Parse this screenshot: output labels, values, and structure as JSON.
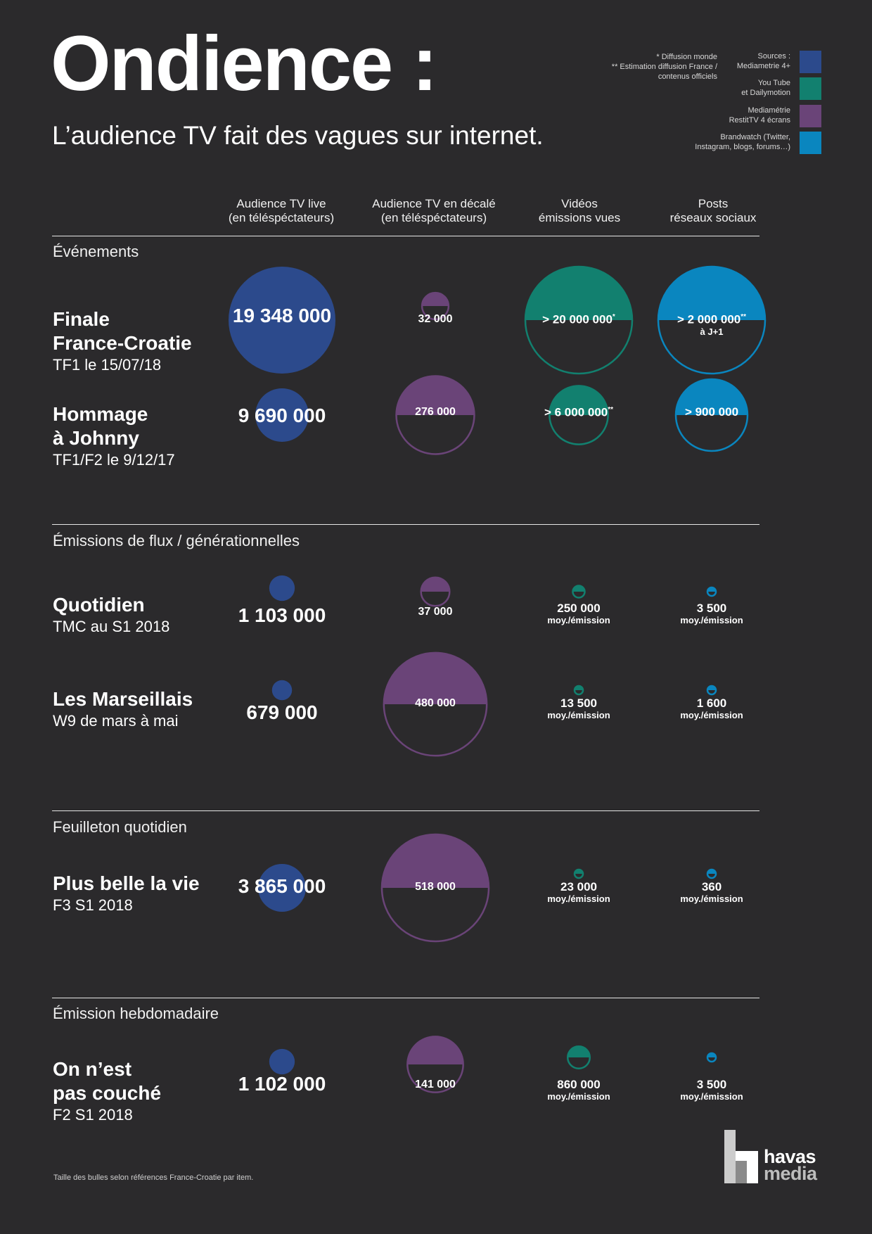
{
  "header": {
    "title": "Ondience :",
    "subtitle": "L’audience TV fait des vagues sur internet.",
    "notes": "* Diffusion monde\n** Estimation diffusion France /\ncontenus officiels"
  },
  "legend": [
    {
      "label": "Sources :\nMediametrie 4+",
      "color": "#2c4a8c"
    },
    {
      "label": "You Tube\net Dailymotion",
      "color": "#12806f"
    },
    {
      "label": "Mediamétrie\nRestitTV 4 écrans",
      "color": "#6a4478"
    },
    {
      "label": "Brandwatch (Twitter,\nInstagram, blogs, forums…)",
      "color": "#0a86bf"
    }
  ],
  "columns": [
    "Audience TV live\n(en téléspéctateurs)",
    "Audience TV en décalé\n(en téléspéctateurs)",
    "Vidéos\némissions vues",
    "Posts\nréseaux sociaux"
  ],
  "sections": [
    "Événements",
    "Émissions de flux / générationnelles",
    "Feuilleton quotidien",
    "Émission hebdomadaire"
  ],
  "rows": [
    {
      "name": "Finale\nFrance-Croatie",
      "sub": "TF1 le 15/07/18",
      "values": [
        {
          "text": "19 348 000",
          "sup": "",
          "small": ""
        },
        {
          "text": "32 000",
          "sup": "",
          "small": ""
        },
        {
          "text": "> 20 000 000",
          "sup": "*",
          "small": ""
        },
        {
          "text": "> 2 000 000",
          "sup": "**",
          "small": "à J+1"
        }
      ]
    },
    {
      "name": "Hommage\nà Johnny",
      "sub": "TF1/F2 le 9/12/17",
      "values": [
        {
          "text": "9 690 000",
          "sup": "",
          "small": ""
        },
        {
          "text": "276 000",
          "sup": "",
          "small": ""
        },
        {
          "text": "> 6 000 000",
          "sup": "**",
          "small": ""
        },
        {
          "text": "> 900 000",
          "sup": "",
          "small": ""
        }
      ]
    },
    {
      "name": "Quotidien",
      "sub": "TMC au S1 2018",
      "values": [
        {
          "text": "1 103 000",
          "sup": "",
          "small": ""
        },
        {
          "text": "37 000",
          "sup": "",
          "small": ""
        },
        {
          "text": "250 000",
          "sup": "",
          "small": "moy./émission"
        },
        {
          "text": "3 500",
          "sup": "",
          "small": "moy./émission"
        }
      ]
    },
    {
      "name": "Les Marseillais",
      "sub": "W9 de mars à mai",
      "values": [
        {
          "text": "679 000",
          "sup": "",
          "small": ""
        },
        {
          "text": "480 000",
          "sup": "",
          "small": ""
        },
        {
          "text": "13 500",
          "sup": "",
          "small": "moy./émission"
        },
        {
          "text": "1 600",
          "sup": "",
          "small": "moy./émission"
        }
      ]
    },
    {
      "name": "Plus belle la vie",
      "sub": "F3 S1 2018",
      "values": [
        {
          "text": "3 865 000",
          "sup": "",
          "small": ""
        },
        {
          "text": "518 000",
          "sup": "",
          "small": ""
        },
        {
          "text": "23 000",
          "sup": "",
          "small": "moy./émission"
        },
        {
          "text": "360",
          "sup": "",
          "small": "moy./émission"
        }
      ]
    },
    {
      "name": "On n’est\npas couché",
      "sub": "F2 S1 2018",
      "values": [
        {
          "text": "1 102 000",
          "sup": "",
          "small": ""
        },
        {
          "text": "141 000",
          "sup": "",
          "small": ""
        },
        {
          "text": "860 000",
          "sup": "",
          "small": "moy./émission"
        },
        {
          "text": "3 500",
          "sup": "",
          "small": "moy./émission"
        }
      ]
    }
  ],
  "footnote": "Taille des bulles selon références France-Croatie par item.",
  "logo": {
    "line1": "havas",
    "line2": "media"
  },
  "chart_data": {
    "type": "bubble-table",
    "categories": [
      "Finale France-Croatie",
      "Hommage à Johnny",
      "Quotidien",
      "Les Marseillais",
      "Plus belle la vie",
      "On n’est pas couché"
    ],
    "series": [
      {
        "name": "Audience TV live (en téléspéctateurs)",
        "color": "#2c4a8c",
        "style": "full",
        "values": [
          19348000,
          9690000,
          1103000,
          679000,
          3865000,
          1102000
        ]
      },
      {
        "name": "Audience TV en décalé (en téléspéctateurs)",
        "color": "#6a4478",
        "style": "half",
        "values": [
          32000,
          276000,
          37000,
          480000,
          518000,
          141000
        ]
      },
      {
        "name": "Vidéos émissions vues",
        "color": "#12806f",
        "style": "half",
        "values": [
          20000000,
          6000000,
          250000,
          13500,
          23000,
          860000
        ]
      },
      {
        "name": "Posts réseaux sociaux",
        "color": "#0a86bf",
        "style": "half",
        "values": [
          2000000,
          900000,
          3500,
          1600,
          360,
          3500
        ]
      }
    ]
  }
}
